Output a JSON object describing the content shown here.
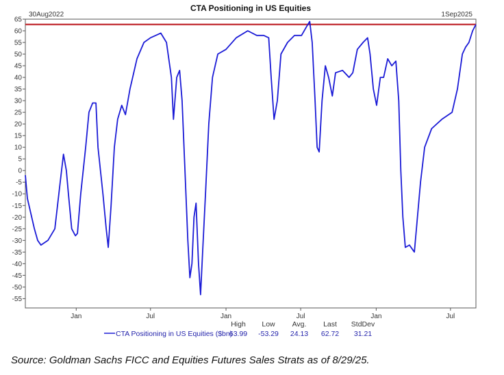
{
  "chart_data": {
    "type": "line",
    "title": "CTA Positioning in US Equities",
    "start_label": "30Aug2022",
    "end_label": "1Sep2025",
    "start_date": "2022-08-30",
    "xlabel": "",
    "ylabel": "",
    "ylim": [
      -59,
      65
    ],
    "yticks": [
      65,
      60,
      55,
      50,
      45,
      40,
      35,
      30,
      25,
      20,
      15,
      10,
      5,
      0,
      -5,
      -10,
      -15,
      -20,
      -25,
      -30,
      -35,
      -40,
      -45,
      -50,
      -55
    ],
    "xticks": [
      {
        "label": "Jan",
        "day": 124
      },
      {
        "label": "Jul",
        "day": 305
      },
      {
        "label": "Jan",
        "day": 489
      },
      {
        "label": "Jul",
        "day": 671
      },
      {
        "label": "Jan",
        "day": 855
      },
      {
        "label": "Jul",
        "day": 1036
      }
    ],
    "x_range_days": [
      0,
      1098
    ],
    "reference_line": {
      "value": 62.72,
      "color": "#c0282d"
    },
    "series": [
      {
        "name": "CTA Positioning in US Equities ($bn)",
        "color": "#1a1ad6",
        "x_days": [
          0,
          5,
          22,
          30,
          38,
          55,
          72,
          85,
          93,
          100,
          105,
          113,
          122,
          127,
          135,
          147,
          155,
          164,
          172,
          177,
          189,
          197,
          202,
          209,
          217,
          225,
          235,
          244,
          255,
          272,
          289,
          305,
          330,
          344,
          356,
          361,
          369,
          376,
          382,
          389,
          396,
          401,
          406,
          411,
          416,
          422,
          427,
          432,
          439,
          447,
          456,
          469,
          489,
          514,
          542,
          564,
          581,
          593,
          599,
          606,
          614,
          623,
          639,
          656,
          673,
          686,
          693,
          699,
          706,
          711,
          716,
          723,
          731,
          739,
          748,
          756,
          773,
          789,
          798,
          809,
          823,
          834,
          840,
          848,
          856,
          865,
          873,
          883,
          893,
          903,
          910,
          915,
          920,
          926,
          936,
          948,
          953,
          963,
          973,
          990,
          1015,
          1040,
          1053,
          1065,
          1073,
          1081,
          1090,
          1098
        ],
        "values": [
          -2,
          -12,
          -25,
          -30,
          -32,
          -30,
          -25,
          -5,
          7,
          0,
          -10,
          -25,
          -28,
          -27,
          -10,
          10,
          25,
          29,
          29,
          10,
          -10,
          -25,
          -33,
          -15,
          10,
          22,
          28,
          24,
          35,
          48,
          55,
          57,
          59,
          55,
          40,
          22,
          40,
          43,
          30,
          0,
          -30,
          -46,
          -40,
          -20,
          -14,
          -40,
          -53.29,
          -35,
          -10,
          20,
          40,
          50,
          52,
          57,
          60,
          58,
          58,
          57,
          40,
          22,
          30,
          50,
          55,
          58,
          58,
          62,
          63.99,
          55,
          30,
          10,
          8,
          30,
          45,
          40,
          32,
          42,
          43,
          40,
          42,
          52,
          55,
          57,
          50,
          35,
          28,
          40,
          40,
          48,
          45,
          47,
          30,
          0,
          -20,
          -33,
          -32,
          -35,
          -25,
          -5,
          10,
          18,
          22,
          25,
          35,
          50,
          53,
          55,
          60,
          62.72
        ]
      }
    ],
    "stats_headers": [
      "High",
      "Low",
      "Avg.",
      "Last",
      "StdDev"
    ],
    "stats_values": [
      "63.99",
      "-53.29",
      "24.13",
      "62.72",
      "31.21"
    ],
    "legend_label": "CTA Positioning in US Equities ($bn)",
    "legend_placement": "bottom"
  },
  "source": "Source: Goldman Sachs FICC and Equities Futures Sales Strats as of 8/29/25."
}
